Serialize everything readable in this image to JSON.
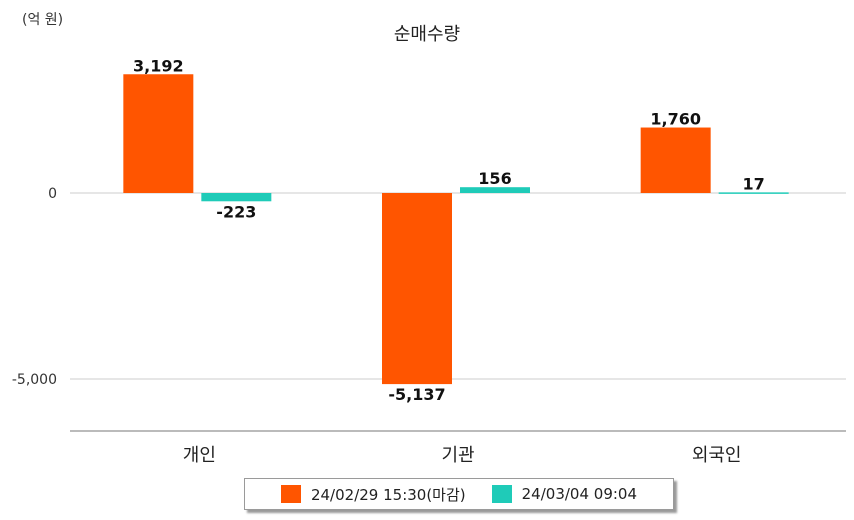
{
  "chart_data": {
    "type": "bar",
    "title": "순매수량",
    "unit_label": "(억 원)",
    "categories": [
      "개인",
      "기관",
      "외국인"
    ],
    "series": [
      {
        "name": "24/02/29 15:30(마감)",
        "color": "#ff5500",
        "values": [
          3192,
          -5137,
          1760
        ],
        "labels": [
          "3,192",
          "-5,137",
          "1,760"
        ]
      },
      {
        "name": "24/03/04 09:04",
        "color": "#1fcbb8",
        "values": [
          -223,
          156,
          17
        ],
        "labels": [
          "-223",
          "156",
          "17"
        ]
      }
    ],
    "yticks": [
      0,
      -5000
    ],
    "ytick_labels": [
      "0",
      "-5,000"
    ],
    "ylim": [
      -6500,
      5000
    ],
    "grid": true,
    "legend_position": "bottom"
  }
}
